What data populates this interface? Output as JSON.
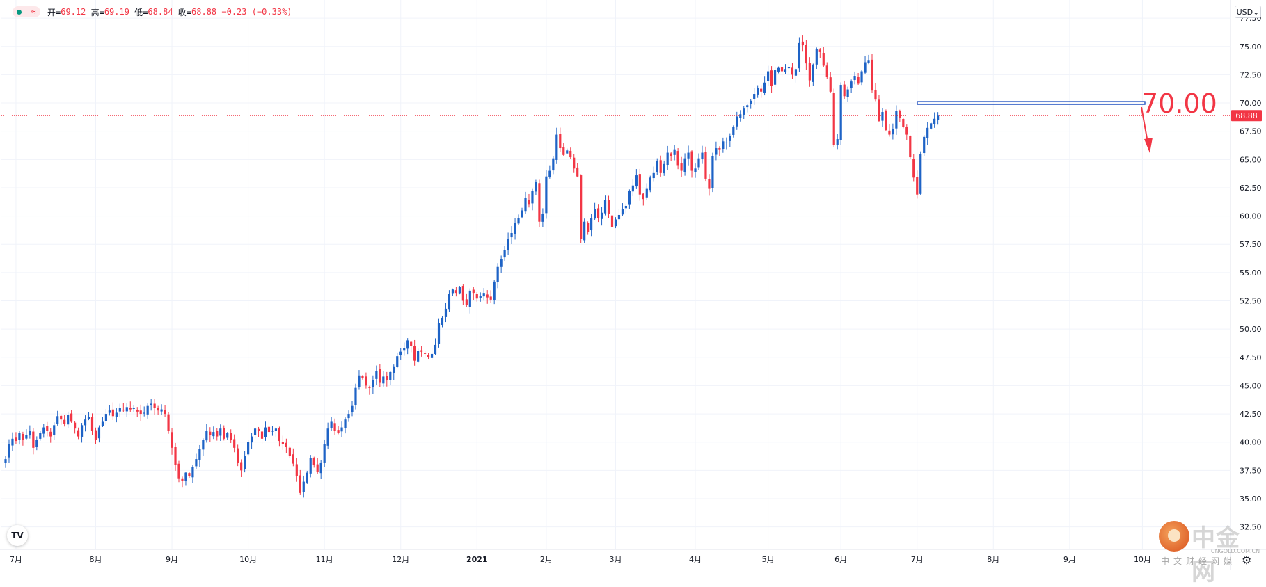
{
  "legend": {
    "open_label": "开=",
    "open": "69.12",
    "high_label": "高=",
    "high": "69.19",
    "low_label": "低=",
    "low": "68.84",
    "close_label": "收=",
    "close": "68.88",
    "change": "−0.23",
    "change_pct": "(−0.33%)",
    "icon": "wave-icon"
  },
  "currency_button": "USD",
  "last_price_label": "68.88",
  "annotation": {
    "text": "70.00",
    "level": 70.0,
    "color": "#f23645",
    "line_color": "#1f4fbf"
  },
  "logo": {
    "tv": "TV",
    "watermark": "中金网",
    "watermark_sub": "CNGOLD.COM.CN",
    "watermark_cn": "中文财经网媒"
  },
  "colors": {
    "up": "#1e63c6",
    "down": "#f23645",
    "grid": "#f0f3fa",
    "text": "#131722"
  },
  "chart_data": {
    "type": "candlestick",
    "ylim": [
      31,
      78
    ],
    "y_ticks": [
      32.5,
      35.0,
      37.5,
      40.0,
      42.5,
      45.0,
      47.5,
      50.0,
      52.5,
      55.0,
      57.5,
      60.0,
      62.5,
      65.0,
      67.5,
      70.0,
      72.5,
      75.0,
      77.5
    ],
    "x_ticks": [
      {
        "label": "7月",
        "index": 3
      },
      {
        "label": "8月",
        "index": 26
      },
      {
        "label": "9月",
        "index": 48
      },
      {
        "label": "10月",
        "index": 70
      },
      {
        "label": "11月",
        "index": 92
      },
      {
        "label": "12月",
        "index": 114
      },
      {
        "label": "2021",
        "index": 136
      },
      {
        "label": "2月",
        "index": 156
      },
      {
        "label": "3月",
        "index": 176
      },
      {
        "label": "4月",
        "index": 199
      },
      {
        "label": "5月",
        "index": 220
      },
      {
        "label": "6月",
        "index": 241
      },
      {
        "label": "7月",
        "index": 263
      },
      {
        "label": "8月",
        "index": 285
      },
      {
        "label": "9月",
        "index": 307
      },
      {
        "label": "10月",
        "index": 328
      }
    ],
    "closes": [
      38.5,
      39.8,
      40.3,
      40.1,
      40.8,
      40.2,
      40.6,
      41.0,
      39.5,
      40.2,
      40.8,
      41.3,
      41.0,
      40.5,
      41.5,
      42.3,
      42.0,
      41.6,
      42.4,
      41.8,
      41.2,
      40.5,
      41.5,
      42.0,
      42.2,
      41.0,
      40.2,
      41.3,
      41.8,
      42.5,
      42.8,
      42.3,
      42.6,
      43.0,
      42.8,
      43.1,
      42.9,
      43.0,
      42.7,
      42.5,
      42.6,
      43.2,
      43.4,
      43.0,
      42.8,
      42.9,
      42.5,
      41.0,
      39.5,
      38.0,
      36.8,
      36.6,
      37.3,
      37.0,
      37.8,
      38.5,
      39.4,
      40.2,
      41.0,
      40.6,
      40.9,
      40.5,
      41.2,
      40.3,
      40.8,
      40.2,
      39.5,
      38.2,
      37.5,
      38.8,
      40.0,
      40.5,
      41.2,
      41.0,
      40.3,
      41.3,
      40.9,
      41.0,
      41.2,
      40.1,
      39.8,
      39.6,
      38.8,
      38.1,
      37.0,
      35.5,
      36.5,
      37.3,
      38.6,
      38.0,
      37.4,
      38.2,
      39.8,
      41.2,
      41.8,
      41.0,
      40.8,
      41.3,
      42.0,
      42.5,
      43.2,
      44.8,
      45.9,
      45.7,
      45.0,
      44.8,
      45.5,
      46.3,
      45.3,
      45.8,
      45.5,
      46.2,
      46.7,
      47.6,
      48.0,
      48.3,
      49.0,
      48.5,
      47.2,
      48.1,
      48.0,
      47.8,
      47.5,
      47.8,
      48.6,
      50.5,
      51.0,
      51.8,
      53.1,
      53.5,
      53.2,
      53.7,
      52.5,
      52.1,
      53.4,
      53.2,
      52.7,
      52.9,
      53.2,
      52.8,
      52.6,
      54.2,
      55.5,
      56.2,
      57.0,
      58.0,
      58.5,
      59.4,
      59.8,
      60.5,
      61.6,
      61.0,
      62.2,
      63.0,
      59.5,
      60.2,
      63.5,
      64.0,
      65.1,
      67.2,
      66.0,
      65.4,
      65.8,
      65.2,
      64.2,
      63.5,
      58.0,
      59.5,
      58.6,
      59.8,
      60.6,
      59.8,
      60.3,
      61.4,
      60.2,
      59.0,
      59.7,
      60.1,
      60.6,
      60.9,
      62.2,
      62.7,
      63.6,
      61.9,
      61.5,
      62.4,
      63.4,
      63.8,
      64.9,
      63.8,
      64.6,
      65.6,
      65.3,
      65.9,
      64.5,
      64.0,
      65.1,
      65.6,
      64.0,
      64.2,
      65.1,
      65.6,
      63.3,
      62.4,
      65.3,
      66.0,
      65.9,
      66.6,
      66.5,
      67.1,
      67.9,
      68.8,
      69.0,
      69.5,
      69.8,
      70.2,
      70.8,
      71.3,
      71.0,
      71.8,
      72.8,
      71.5,
      72.9,
      73.1,
      72.8,
      73.0,
      73.2,
      72.5,
      73.0,
      75.3,
      75.1,
      73.5,
      72.0,
      73.4,
      74.8,
      74.5,
      73.3,
      72.3,
      71.0,
      66.3,
      66.8,
      71.6,
      70.6,
      71.2,
      71.9,
      72.4,
      71.7,
      72.8,
      73.6,
      73.8,
      71.1,
      70.3,
      68.4,
      69.2,
      67.6,
      67.2,
      67.7,
      69.3,
      68.7,
      67.9,
      67.2,
      65.2,
      63.4,
      61.9,
      65.5,
      67.0,
      67.8,
      68.2,
      68.6,
      68.88
    ],
    "note": "Daily candlestick price series (USD), Jun 2020 – Aug 2021"
  }
}
